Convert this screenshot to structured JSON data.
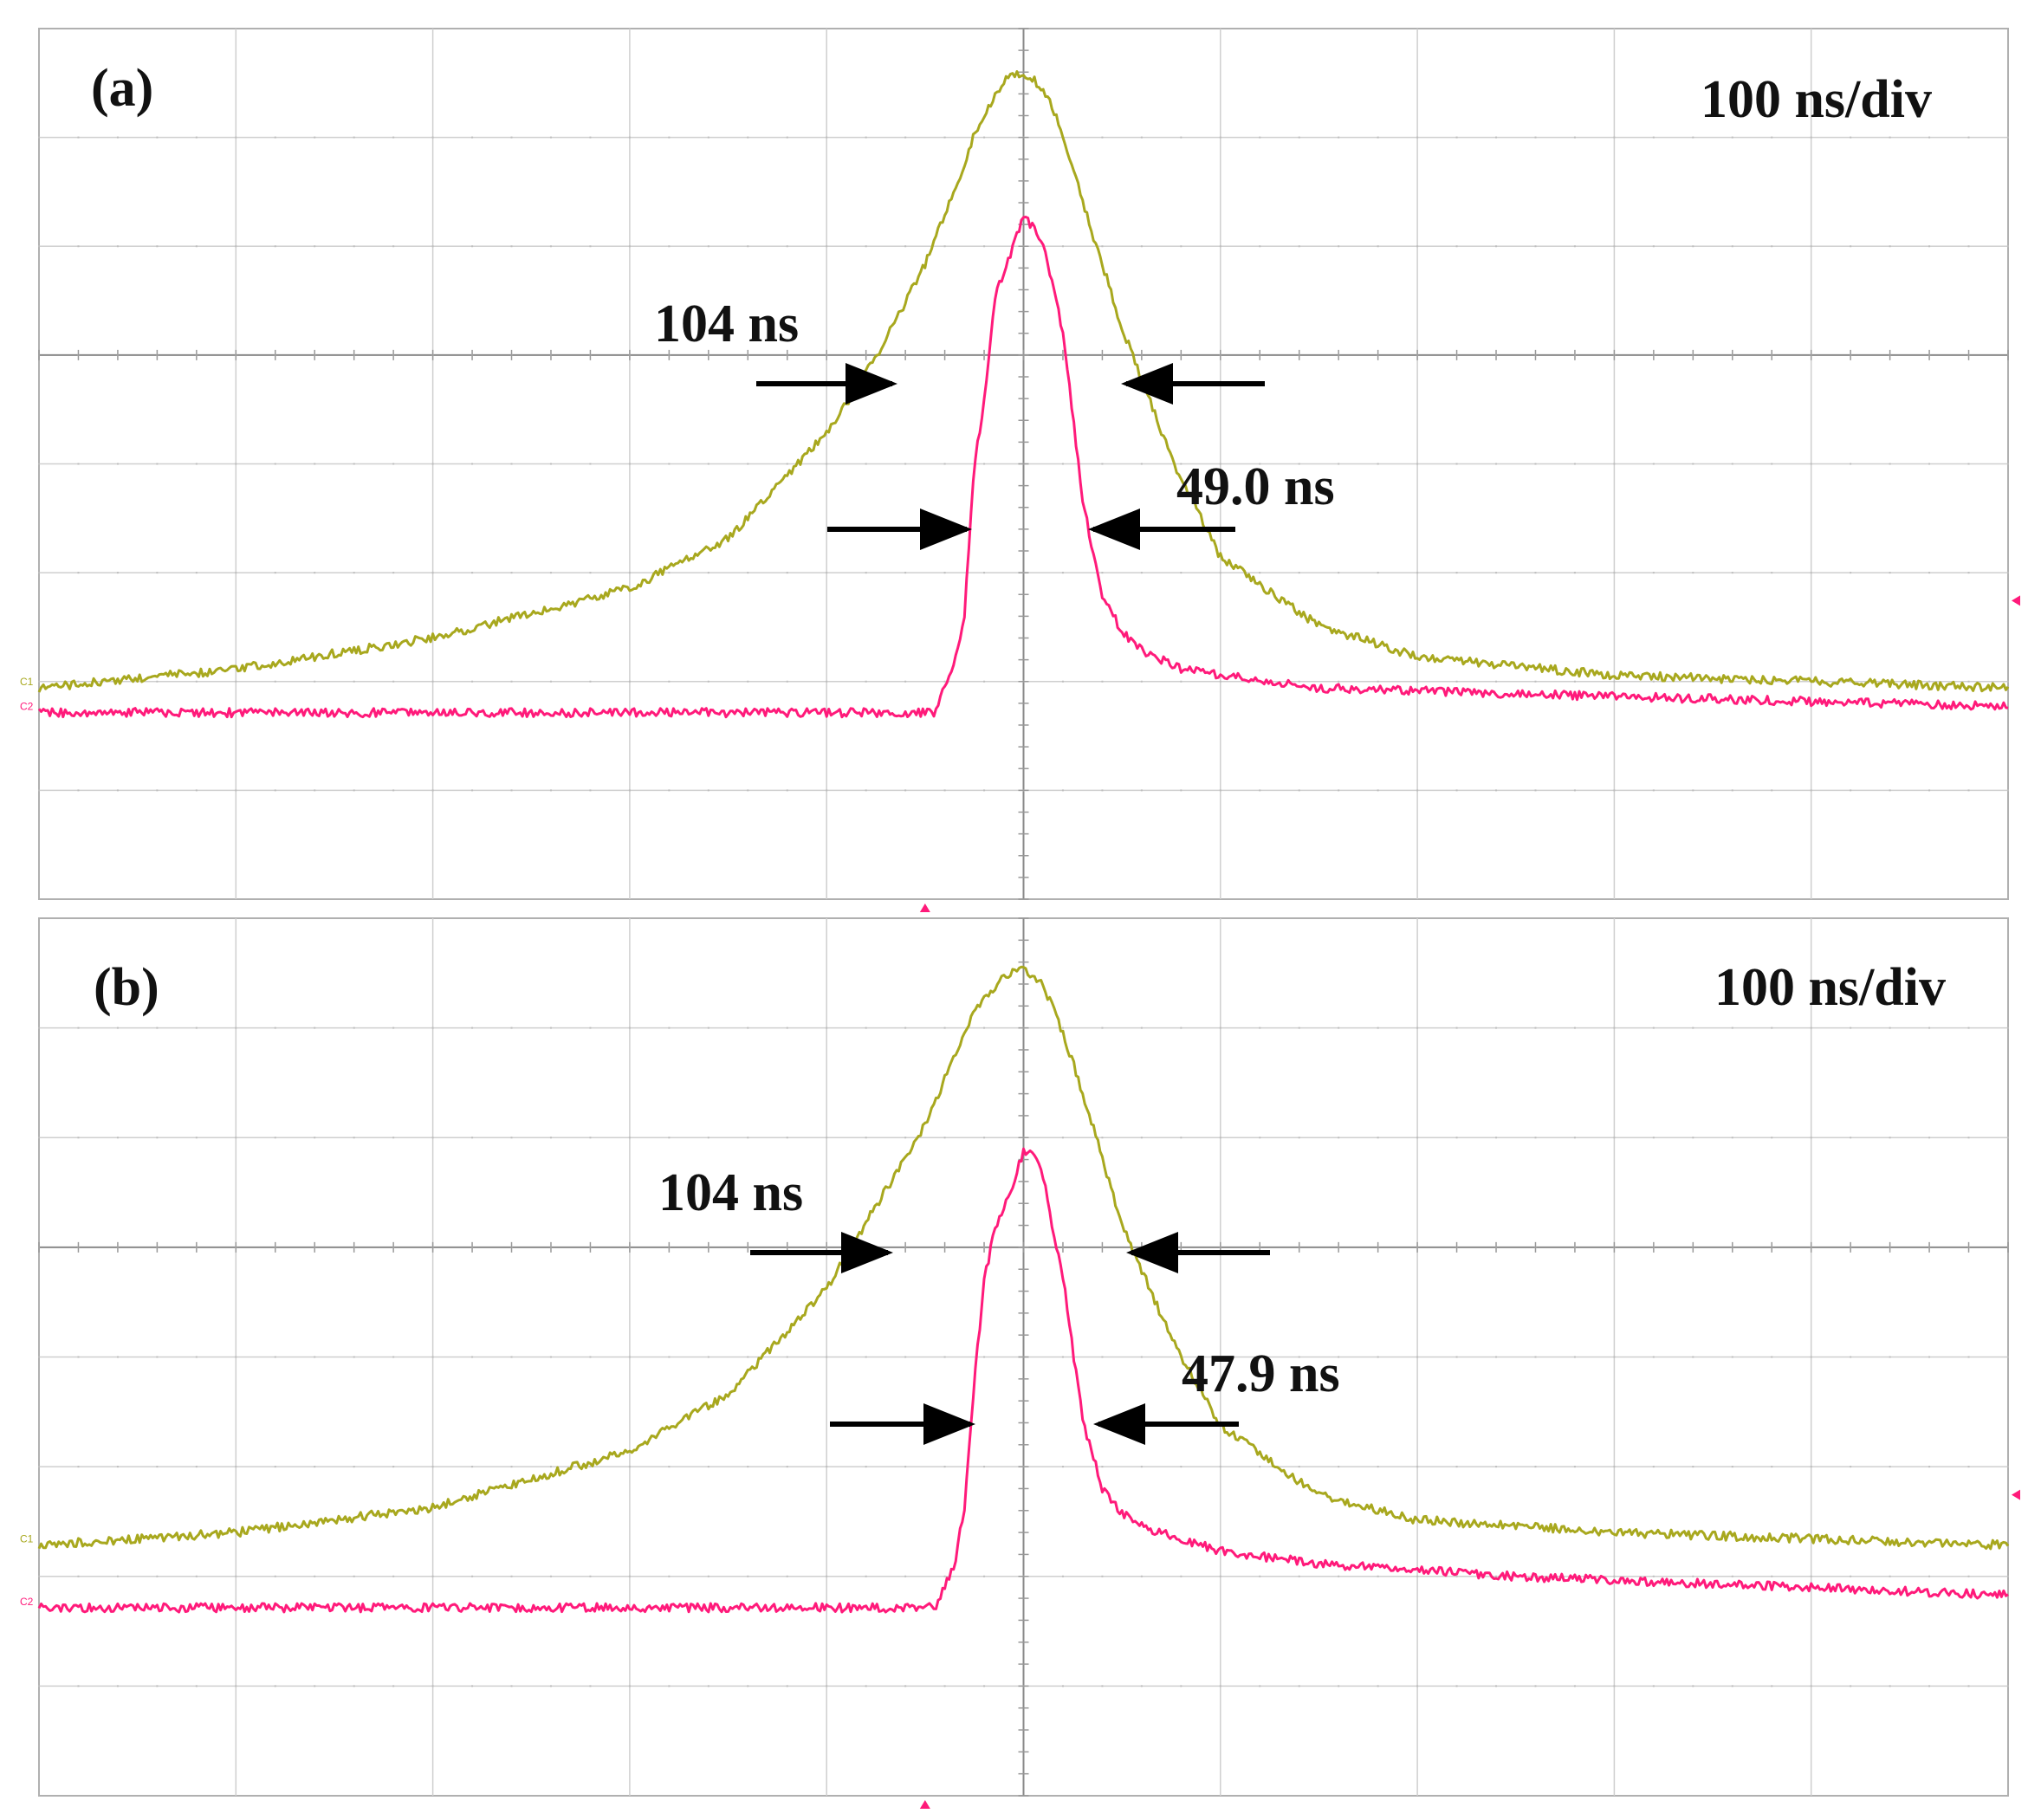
{
  "chart_data": [
    {
      "type": "line",
      "panel_label": "(a)",
      "timebase": "100 ns/div",
      "x_unit": "ns",
      "xlim": [
        -500,
        500
      ],
      "ylim": [
        -4,
        3
      ],
      "grid": true,
      "series": [
        {
          "name": "C1",
          "color": "#a8a81e",
          "x": [
            -500,
            -400,
            -300,
            -200,
            -150,
            -100,
            -75,
            -50,
            -35,
            -25,
            -15,
            -8,
            0,
            8,
            15,
            25,
            35,
            50,
            75,
            100,
            150,
            200,
            300,
            400,
            500
          ],
          "y": [
            -2.3,
            -2.15,
            -1.9,
            -1.5,
            -1.1,
            -0.25,
            0.35,
            1.1,
            1.7,
            2.15,
            2.45,
            2.6,
            2.65,
            2.55,
            2.35,
            1.9,
            1.35,
            0.6,
            -0.45,
            -1.25,
            -1.8,
            -2.05,
            -2.2,
            -2.25,
            -2.3
          ]
        },
        {
          "name": "C2",
          "color": "#ff1a7a",
          "x": [
            -500,
            -200,
            -100,
            -45,
            -35,
            -30,
            -25,
            -20,
            -15,
            -10,
            -5,
            0,
            5,
            10,
            15,
            20,
            25,
            30,
            40,
            50,
            60,
            80,
            100,
            150,
            250,
            500
          ],
          "y": [
            -2.5,
            -2.5,
            -2.5,
            -2.5,
            -2.1,
            -1.7,
            -0.5,
            0.0,
            0.8,
            1.05,
            1.25,
            1.5,
            1.4,
            1.25,
            0.95,
            0.55,
            -0.1,
            -0.8,
            -1.55,
            -1.85,
            -2.0,
            -2.15,
            -2.2,
            -2.3,
            -2.35,
            -2.45
          ]
        }
      ],
      "annotations": [
        {
          "text": "104 ns",
          "for": "C1"
        },
        {
          "text": "49.0 ns",
          "for": "C2"
        }
      ]
    },
    {
      "type": "line",
      "panel_label": "(b)",
      "timebase": "100 ns/div",
      "x_unit": "ns",
      "xlim": [
        -500,
        500
      ],
      "ylim": [
        -4,
        3
      ],
      "grid": true,
      "series": [
        {
          "name": "C1",
          "color": "#a8a81e",
          "x": [
            -500,
            -400,
            -300,
            -200,
            -150,
            -100,
            -75,
            -50,
            -35,
            -25,
            -15,
            -8,
            0,
            8,
            15,
            25,
            35,
            50,
            75,
            100,
            150,
            200,
            300,
            400,
            500
          ],
          "y": [
            -2.0,
            -1.9,
            -1.7,
            -1.25,
            -0.8,
            0.05,
            0.7,
            1.35,
            1.9,
            2.25,
            2.45,
            2.55,
            2.6,
            2.5,
            2.3,
            1.85,
            1.35,
            0.55,
            -0.35,
            -1.05,
            -1.6,
            -1.8,
            -1.9,
            -1.95,
            -2.0
          ]
        },
        {
          "name": "C2",
          "color": "#ff1a7a",
          "x": [
            -500,
            -200,
            -100,
            -45,
            -35,
            -30,
            -25,
            -20,
            -15,
            -10,
            -5,
            0,
            5,
            10,
            15,
            20,
            25,
            30,
            40,
            50,
            60,
            80,
            100,
            150,
            250,
            500
          ],
          "y": [
            -2.5,
            -2.5,
            -2.5,
            -2.5,
            -2.15,
            -1.7,
            -0.7,
            0.1,
            0.5,
            0.7,
            0.9,
            1.15,
            1.1,
            0.95,
            0.5,
            0.15,
            -0.45,
            -1.0,
            -1.55,
            -1.75,
            -1.85,
            -1.95,
            -2.05,
            -2.15,
            -2.25,
            -2.4
          ]
        }
      ],
      "annotations": [
        {
          "text": "104 ns",
          "for": "C1"
        },
        {
          "text": "47.9 ns",
          "for": "C2"
        }
      ]
    }
  ]
}
